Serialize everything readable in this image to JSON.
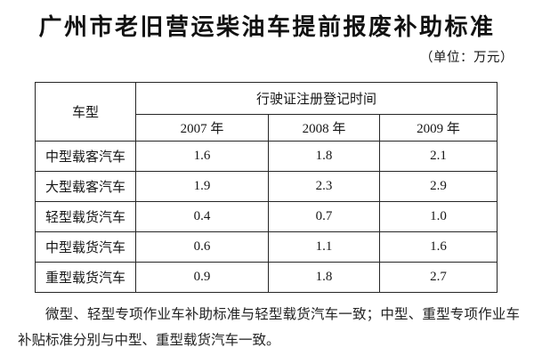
{
  "title": "广州市老旧营运柴油车提前报废补助标准",
  "unit_label": "（单位：万元）",
  "table": {
    "corner_header": "车型",
    "group_header": "行驶证注册登记时间",
    "year_headers": [
      "2007 年",
      "2008 年",
      "2009 年"
    ],
    "rows": [
      {
        "type": "中型载客汽车",
        "values": [
          "1.6",
          "1.8",
          "2.1"
        ]
      },
      {
        "type": "大型载客汽车",
        "values": [
          "1.9",
          "2.3",
          "2.9"
        ]
      },
      {
        "type": "轻型载货汽车",
        "values": [
          "0.4",
          "0.7",
          "1.0"
        ]
      },
      {
        "type": "中型载货汽车",
        "values": [
          "0.6",
          "1.1",
          "1.6"
        ]
      },
      {
        "type": "重型载货汽车",
        "values": [
          "0.9",
          "1.8",
          "2.7"
        ]
      }
    ]
  },
  "note": "微型、轻型专项作业车补助标准与轻型载货汽车一致；中型、重型专项作业车补贴标准分别与中型、重型载货汽车一致。",
  "colors": {
    "background": "#ffffff",
    "text": "#1a1a1a",
    "border": "#262626"
  }
}
